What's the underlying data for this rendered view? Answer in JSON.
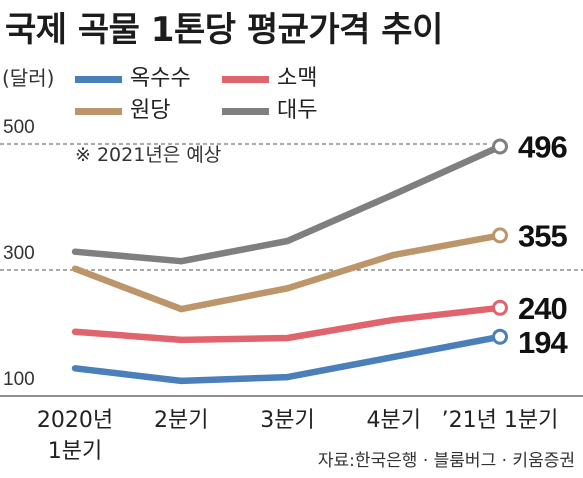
{
  "source": "자료:한국은행 · 블룸버그 · 키움증권",
  "chart_data": {
    "type": "line",
    "title": "국제 곡물 1톤당 평균가격 추이",
    "ylabel": "(달러)",
    "categories": [
      "2020년\n1분기",
      "2분기",
      "3분기",
      "4분기",
      "’21년 1분기"
    ],
    "ylim": [
      100,
      500
    ],
    "yticks": [
      100,
      300,
      500
    ],
    "grid": true,
    "legend_position": "top-left",
    "annotations": [
      "※ 2021년은 예상"
    ],
    "series": [
      {
        "name": "옥수수",
        "color": "#4b7fb9",
        "values": [
          144,
          124,
          130,
          162,
          194
        ]
      },
      {
        "name": "소맥",
        "color": "#e0646e",
        "values": [
          202,
          189,
          192,
          221,
          240
        ]
      },
      {
        "name": "원당",
        "color": "#bc966a",
        "values": [
          302,
          238,
          271,
          324,
          355
        ]
      },
      {
        "name": "대두",
        "color": "#7f7f7f",
        "values": [
          329,
          314,
          346,
          420,
          496
        ]
      }
    ]
  }
}
